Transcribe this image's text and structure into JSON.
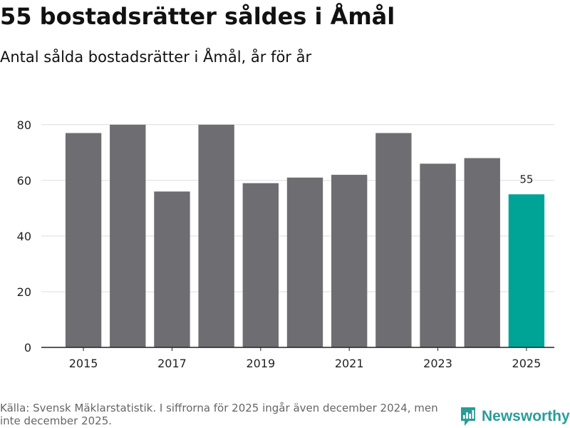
{
  "header": {
    "title": "55 bostadsrätter såldes i Åmål",
    "subtitle": "Antal sålda bostadsrätter i Åmål, år för år"
  },
  "chart_data": {
    "type": "bar",
    "title": "55 bostadsrätter såldes i Åmål",
    "subtitle": "Antal sålda bostadsrätter i Åmål, år för år",
    "xlabel": "",
    "ylabel": "",
    "categories": [
      "2015",
      "2016",
      "2017",
      "2018",
      "2019",
      "2020",
      "2021",
      "2022",
      "2023",
      "2024",
      "2025"
    ],
    "values": [
      77,
      80,
      56,
      80,
      59,
      61,
      62,
      77,
      66,
      68,
      55
    ],
    "ylim": [
      0,
      82
    ],
    "yticks": [
      0,
      20,
      40,
      60,
      80
    ],
    "xtick_labels": [
      "2015",
      "2017",
      "2019",
      "2021",
      "2023",
      "2025"
    ],
    "highlight_index": 10,
    "data_labels": [
      {
        "index": 10,
        "text": "55"
      }
    ],
    "grid": true,
    "colors": {
      "bar": "#6e6d72",
      "highlight": "#00a497",
      "grid": "#dddddd",
      "axis": "#222222"
    }
  },
  "footer": {
    "source": "Källa: Svensk Mäklarstatistik. I siffrorna för 2025 ingår även december 2024, men inte december 2025."
  },
  "brand": {
    "name": "Newsworthy",
    "icon": "newsworthy-logo-icon",
    "color": "#2b9c98"
  }
}
